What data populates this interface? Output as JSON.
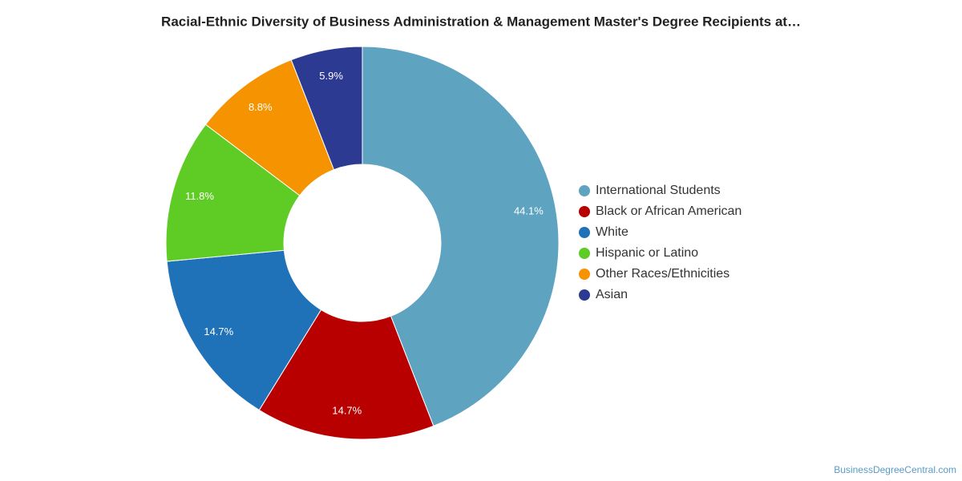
{
  "chart_data": {
    "type": "pie",
    "title": "Racial-Ethnic Diversity of Business Administration & Management Master's Degree Recipients at…",
    "categories": [
      "International Students",
      "Black or African American",
      "White",
      "Hispanic or Latino",
      "Other Races/Ethnicities",
      "Asian"
    ],
    "values": [
      44.1,
      14.7,
      14.7,
      11.8,
      8.8,
      5.9
    ],
    "value_labels": [
      "44.1%",
      "14.7%",
      "14.7%",
      "11.8%",
      "8.8%",
      "5.9%"
    ],
    "colors": [
      "#5ea3c0",
      "#b80000",
      "#1f72b8",
      "#5ecc24",
      "#f59400",
      "#2d3a91"
    ],
    "donut": true,
    "legend": "right",
    "source": "BusinessDegreeCentral.com"
  }
}
